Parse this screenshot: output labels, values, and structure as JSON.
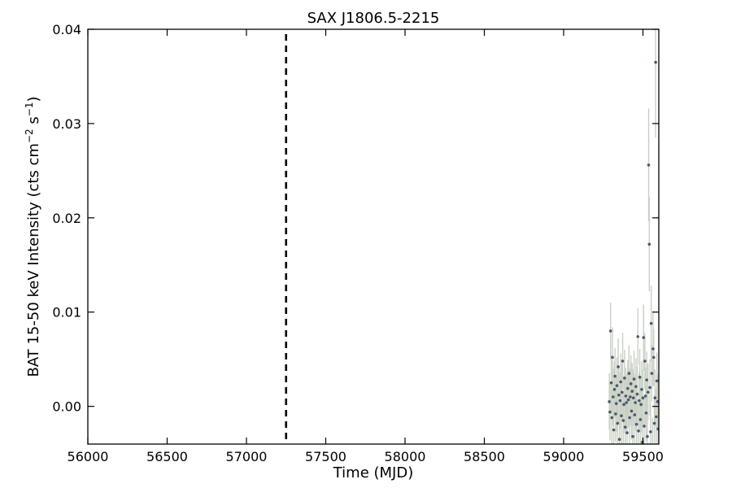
{
  "chart_data": {
    "type": "scatter",
    "title": "SAX J1806.5-2215",
    "xlabel": "Time (MJD)",
    "ylabel_main": "BAT 15-50 keV Intensity (cts cm",
    "ylabel_exp1": "−2",
    "ylabel_mid": " s",
    "ylabel_exp2": "−1",
    "ylabel_end": ")",
    "xlim": [
      56000,
      59600
    ],
    "ylim": [
      -0.004,
      0.04
    ],
    "x_ticks": [
      56000,
      56500,
      57000,
      57500,
      58000,
      58500,
      59000,
      59500
    ],
    "x_tick_labels": [
      "56000",
      "56500",
      "57000",
      "57500",
      "58000",
      "58500",
      "59000",
      "59500"
    ],
    "y_ticks": [
      0.0,
      0.01,
      0.02,
      0.03,
      0.04
    ],
    "y_tick_labels": [
      "0.00",
      "0.01",
      "0.02",
      "0.03",
      "0.04"
    ],
    "vertical_marker_x": 57250,
    "series": [
      {
        "x": [
          59288,
          59292,
          59296,
          59300,
          59304,
          59308,
          59312,
          59316,
          59320,
          59324,
          59328,
          59332,
          59336,
          59340,
          59344,
          59348,
          59352,
          59356,
          59360,
          59364,
          59368,
          59372,
          59376,
          59380,
          59384,
          59388,
          59392,
          59396,
          59400,
          59404,
          59408,
          59412,
          59416,
          59420,
          59424,
          59428,
          59432,
          59436,
          59440,
          59444,
          59448,
          59452,
          59456,
          59460,
          59464,
          59468,
          59472,
          59476,
          59480,
          59484,
          59488,
          59492,
          59496,
          59500,
          59504,
          59508,
          59512,
          59516,
          59520,
          59524,
          59528,
          59532,
          59536,
          59540,
          59544,
          59548,
          59552,
          59556,
          59560,
          59564,
          59568,
          59572,
          59576,
          59580,
          59584,
          59588,
          59592,
          59596
        ],
        "y": [
          0.0005,
          -0.0006,
          0.008,
          0.0025,
          -0.0012,
          0.0052,
          0.001,
          -0.0025,
          0.0018,
          0.0032,
          -0.0008,
          0.0003,
          0.0022,
          -0.0018,
          0.0042,
          0.0012,
          -0.0035,
          0.0006,
          0.0026,
          -0.001,
          0.0015,
          0.0048,
          -0.0015,
          0.0002,
          0.003,
          -0.0022,
          0.0011,
          0.0004,
          -0.0028,
          0.0019,
          0.0007,
          0.0035,
          -0.0012,
          0.001,
          0.0024,
          -0.0005,
          0.0016,
          -0.0032,
          0.0009,
          0.0029,
          -0.0009,
          0.0004,
          0.0021,
          -0.0019,
          0.0013,
          0.0074,
          -0.0026,
          0.0006,
          0.0031,
          -0.0014,
          0.0002,
          0.0018,
          -0.0038,
          0.0009,
          0.0073,
          -0.0021,
          0.0048,
          0.0011,
          -0.0007,
          0.0028,
          -0.0032,
          0.0015,
          0.0256,
          0.0172,
          0.002,
          -0.0027,
          0.0088,
          0.0035,
          -0.0042,
          0.0061,
          0.0052,
          -0.0018,
          0.0009,
          0.0365,
          -0.0011,
          0.0027,
          0.0005,
          -0.0024
        ],
        "err": [
          0.003,
          0.003,
          0.003,
          0.003,
          0.003,
          0.0032,
          0.003,
          0.003,
          0.003,
          0.003,
          0.003,
          0.003,
          0.003,
          0.003,
          0.003,
          0.003,
          0.003,
          0.003,
          0.003,
          0.003,
          0.003,
          0.003,
          0.003,
          0.003,
          0.003,
          0.003,
          0.003,
          0.003,
          0.003,
          0.003,
          0.003,
          0.003,
          0.003,
          0.003,
          0.003,
          0.003,
          0.003,
          0.003,
          0.003,
          0.003,
          0.003,
          0.003,
          0.003,
          0.003,
          0.003,
          0.003,
          0.003,
          0.003,
          0.003,
          0.003,
          0.003,
          0.003,
          0.003,
          0.003,
          0.0035,
          0.003,
          0.003,
          0.003,
          0.003,
          0.003,
          0.003,
          0.003,
          0.006,
          0.005,
          0.003,
          0.003,
          0.004,
          0.003,
          0.003,
          0.004,
          0.003,
          0.003,
          0.003,
          0.008,
          0.003,
          0.003,
          0.003,
          0.003
        ]
      }
    ]
  }
}
